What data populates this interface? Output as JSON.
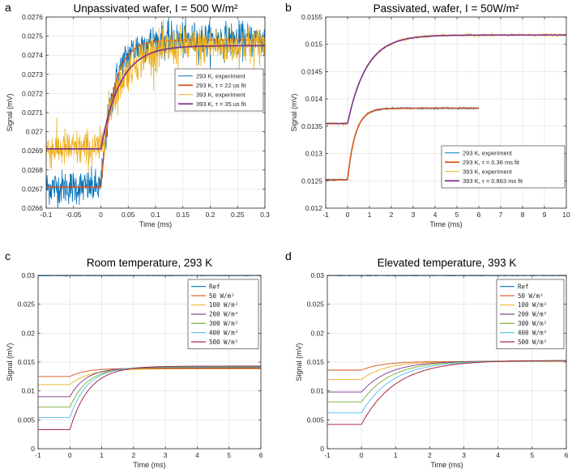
{
  "chart_data": [
    {
      "type": "line",
      "panel": "a",
      "title": "Unpassivated wafer, I = 500 W/m²",
      "xlabel": "Time (ms)",
      "ylabel": "Signal (mV)",
      "xlim": [
        -0.1,
        0.3
      ],
      "ylim": [
        0.0266,
        0.0276
      ],
      "xticks": [
        -0.1,
        -0.05,
        0,
        0.05,
        0.1,
        0.15,
        0.2,
        0.25,
        0.3
      ],
      "xtick_labels": [
        "-0.1",
        "-0.05",
        "0",
        "0.05",
        "0.1",
        "0.15",
        "0.2",
        "0.25",
        "0.3"
      ],
      "yticks": [
        0.0266,
        0.0267,
        0.0268,
        0.0269,
        0.027,
        0.0271,
        0.0272,
        0.0273,
        0.0274,
        0.0275,
        0.0276
      ],
      "ytick_labels": [
        "0.0266",
        "0.0267",
        "0.0268",
        "0.0269",
        "0.027",
        "0.0271",
        "0.0272",
        "0.0273",
        "0.0274",
        "0.0275",
        "0.0276"
      ],
      "grid": true,
      "legend_position": "center-right",
      "series": [
        {
          "name": "293 K, experiment",
          "kind": "experiment",
          "color": "#0072BD",
          "baseline": 0.02671,
          "final": 0.02748,
          "tau": 0.022,
          "noise": 4.5e-05
        },
        {
          "name": "293 K, τ = 22 us fit",
          "kind": "fit",
          "color": "#D95319",
          "baseline": 0.02671,
          "final": 0.02748,
          "tau": 0.022
        },
        {
          "name": "393 K, experiment",
          "kind": "experiment",
          "color": "#EDB120",
          "baseline": 0.02691,
          "final": 0.02745,
          "tau": 0.035,
          "noise": 5e-05
        },
        {
          "name": "393 K, τ = 35 us fit",
          "kind": "fit",
          "color": "#7E2F8E",
          "baseline": 0.02691,
          "final": 0.02745,
          "tau": 0.035
        }
      ]
    },
    {
      "type": "line",
      "panel": "b",
      "title": "Passivated, wafer, I = 50W/m²",
      "xlabel": "Time (ms)",
      "ylabel": "Signal (mV)",
      "xlim": [
        -1,
        10
      ],
      "ylim": [
        0.012,
        0.0155
      ],
      "xticks": [
        -1,
        0,
        1,
        2,
        3,
        4,
        5,
        6,
        7,
        8,
        9,
        10
      ],
      "xtick_labels": [
        "-1",
        "0",
        "1",
        "2",
        "3",
        "4",
        "5",
        "6",
        "7",
        "8",
        "9",
        "10"
      ],
      "yticks": [
        0.012,
        0.0125,
        0.013,
        0.0135,
        0.014,
        0.0145,
        0.015,
        0.0155
      ],
      "ytick_labels": [
        "0.012",
        "0.0125",
        "0.013",
        "0.0135",
        "0.014",
        "0.0145",
        "0.015",
        "0.0155"
      ],
      "grid": true,
      "legend_position": "lower-right",
      "series": [
        {
          "name": "293 K, experiment",
          "kind": "experiment",
          "color": "#0072BD",
          "baseline": 0.01252,
          "final": 0.01383,
          "tau": 0.36,
          "noise": 8e-06,
          "xmax": 6
        },
        {
          "name": "293 K, τ = 0.36 ms fit",
          "kind": "fit",
          "color": "#D95319",
          "baseline": 0.01252,
          "final": 0.01383,
          "tau": 0.36,
          "xmax": 6
        },
        {
          "name": "393 K, experiment",
          "kind": "experiment",
          "color": "#EDB120",
          "baseline": 0.01355,
          "final": 0.01517,
          "tau": 0.863,
          "noise": 1.2e-05,
          "xmax": 10
        },
        {
          "name": "393 K, τ = 0.863 ms fit",
          "kind": "fit",
          "color": "#7E2F8E",
          "baseline": 0.01355,
          "final": 0.01517,
          "tau": 0.863,
          "xmax": 10
        }
      ]
    },
    {
      "type": "line",
      "panel": "c",
      "title": "Room temperature, 293 K",
      "xlabel": "Time (ms)",
      "ylabel": "Signal (mV)",
      "xlim": [
        -1,
        6
      ],
      "ylim": [
        0,
        0.03
      ],
      "xticks": [
        -1,
        0,
        1,
        2,
        3,
        4,
        5,
        6
      ],
      "xtick_labels": [
        "-1",
        "0",
        "1",
        "2",
        "3",
        "4",
        "5",
        "6"
      ],
      "yticks": [
        0,
        0.005,
        0.01,
        0.015,
        0.02,
        0.025,
        0.03
      ],
      "ytick_labels": [
        "0",
        "0.005",
        "0.01",
        "0.015",
        "0.02",
        "0.025",
        "0.03"
      ],
      "grid": true,
      "legend_position": "top-right",
      "series": [
        {
          "name": "Ref",
          "kind": "ref",
          "color": "#0072BD",
          "value": 0.03
        },
        {
          "name": "50 W/m²",
          "kind": "curve",
          "color": "#D95319",
          "baseline": 0.0125,
          "final": 0.0139,
          "tau": 0.5
        },
        {
          "name": "100 W/m²",
          "kind": "curve",
          "color": "#EDB120",
          "baseline": 0.0111,
          "final": 0.0138,
          "tau": 0.6
        },
        {
          "name": "200 W/m²",
          "kind": "curve",
          "color": "#7E2F8E",
          "baseline": 0.009,
          "final": 0.014,
          "tau": 0.5
        },
        {
          "name": "300 W/m²",
          "kind": "curve",
          "color": "#77AC30",
          "baseline": 0.0072,
          "final": 0.0141,
          "tau": 0.55
        },
        {
          "name": "400 W/m²",
          "kind": "curve",
          "color": "#4DBEEE",
          "baseline": 0.0054,
          "final": 0.0142,
          "tau": 0.55
        },
        {
          "name": "500 W/m²",
          "kind": "curve",
          "color": "#A2142F",
          "baseline": 0.0033,
          "final": 0.0143,
          "tau": 0.6
        }
      ]
    },
    {
      "type": "line",
      "panel": "d",
      "title": "Elevated  temperature, 393 K",
      "xlabel": "Time (ms)",
      "ylabel": "Signal (mV)",
      "xlim": [
        -1,
        6
      ],
      "ylim": [
        0,
        0.03
      ],
      "xticks": [
        -1,
        0,
        1,
        2,
        3,
        4,
        5,
        6
      ],
      "xtick_labels": [
        "-1",
        "0",
        "1",
        "2",
        "3",
        "4",
        "5",
        "6"
      ],
      "yticks": [
        0,
        0.005,
        0.01,
        0.015,
        0.02,
        0.025,
        0.03
      ],
      "ytick_labels": [
        "0",
        "0.005",
        "0.01",
        "0.015",
        "0.02",
        "0.025",
        "0.03"
      ],
      "grid": true,
      "legend_position": "top-right",
      "series": [
        {
          "name": "Ref",
          "kind": "ref",
          "color": "#0072BD",
          "value": 0.03
        },
        {
          "name": "50 W/m²",
          "kind": "curve",
          "color": "#D95319",
          "baseline": 0.0136,
          "final": 0.0151,
          "tau": 0.6
        },
        {
          "name": "100 W/m²",
          "kind": "curve",
          "color": "#EDB120",
          "baseline": 0.012,
          "final": 0.0151,
          "tau": 0.7
        },
        {
          "name": "200 W/m²",
          "kind": "curve",
          "color": "#7E2F8E",
          "baseline": 0.0098,
          "final": 0.0152,
          "tau": 0.8
        },
        {
          "name": "300 W/m²",
          "kind": "curve",
          "color": "#77AC30",
          "baseline": 0.0081,
          "final": 0.0152,
          "tau": 0.85
        },
        {
          "name": "400 W/m²",
          "kind": "curve",
          "color": "#4DBEEE",
          "baseline": 0.0062,
          "final": 0.0152,
          "tau": 0.9
        },
        {
          "name": "500 W/m²",
          "kind": "curve",
          "color": "#A2142F",
          "baseline": 0.0042,
          "final": 0.0153,
          "tau": 1.0
        }
      ]
    }
  ]
}
